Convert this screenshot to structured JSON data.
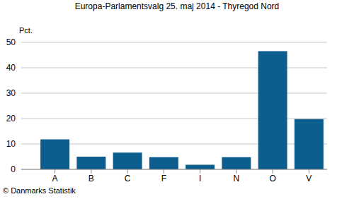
{
  "chart_data": {
    "type": "bar",
    "title": "Europa-Parlamentsvalg 25. maj 2014 - Thyregod Nord",
    "ylabel": "Pct.",
    "annotation": "© Danmarks Statistik",
    "categories": [
      "A",
      "B",
      "C",
      "F",
      "I",
      "N",
      "O",
      "V"
    ],
    "values": [
      11.8,
      5.0,
      6.6,
      4.8,
      1.8,
      4.8,
      46.5,
      19.8
    ],
    "color": "#0b5e8e",
    "ylim": [
      0,
      50
    ],
    "yticks": [
      0,
      10,
      20,
      30,
      40,
      50
    ],
    "grid": true
  }
}
